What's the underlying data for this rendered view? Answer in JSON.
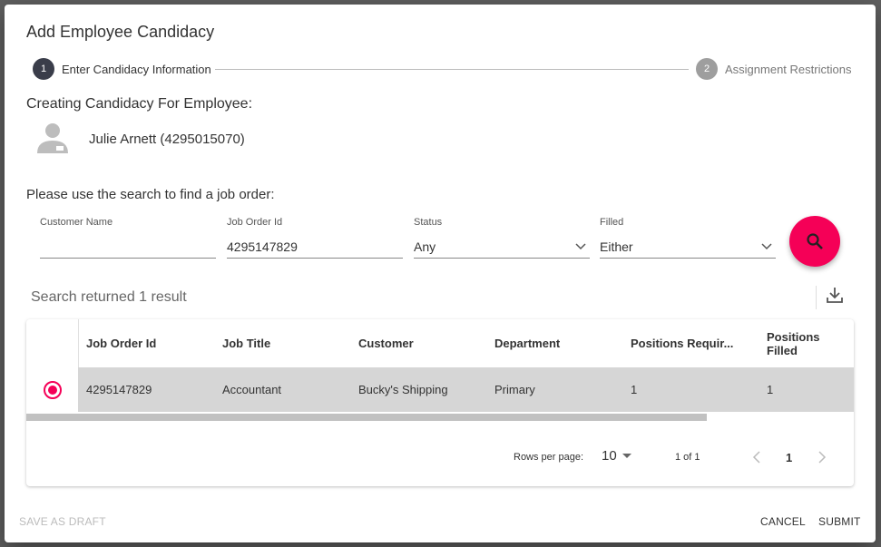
{
  "dialog": {
    "title": "Add Employee Candidacy"
  },
  "stepper": {
    "steps": [
      {
        "number": "1",
        "label": "Enter Candidacy Information",
        "active": true
      },
      {
        "number": "2",
        "label": "Assignment Restrictions",
        "active": false
      }
    ]
  },
  "employee": {
    "heading": "Creating Candidacy For Employee:",
    "name": "Julie Arnett (4295015070)",
    "icon": "employee-badge-icon"
  },
  "search": {
    "prompt": "Please use the search to find a job order:",
    "fields": [
      {
        "label": "Customer Name",
        "value": ""
      },
      {
        "label": "Job Order Id",
        "value": "4295147829"
      },
      {
        "label": "Status",
        "value": "Any"
      },
      {
        "label": "Filled",
        "value": "Either"
      }
    ],
    "button_icon": "search-icon",
    "accent": "#f50057"
  },
  "results": {
    "summary": "Search returned 1 result",
    "export_icon": "download-icon",
    "columns": [
      "Job Order Id",
      "Job Title",
      "Customer",
      "Department",
      "Positions Requir...",
      "Positions Filled"
    ],
    "rows": [
      {
        "selected": true,
        "cells": [
          "4295147829",
          "Accountant",
          "Bucky's Shipping",
          "Primary",
          "1",
          "1"
        ]
      }
    ],
    "pagination": {
      "rows_per_page_label": "Rows per page:",
      "rows_per_page": "10",
      "range": "1 of 1",
      "page": "1"
    }
  },
  "footer": {
    "save_draft": "SAVE AS DRAFT",
    "cancel": "CANCEL",
    "submit": "SUBMIT"
  }
}
